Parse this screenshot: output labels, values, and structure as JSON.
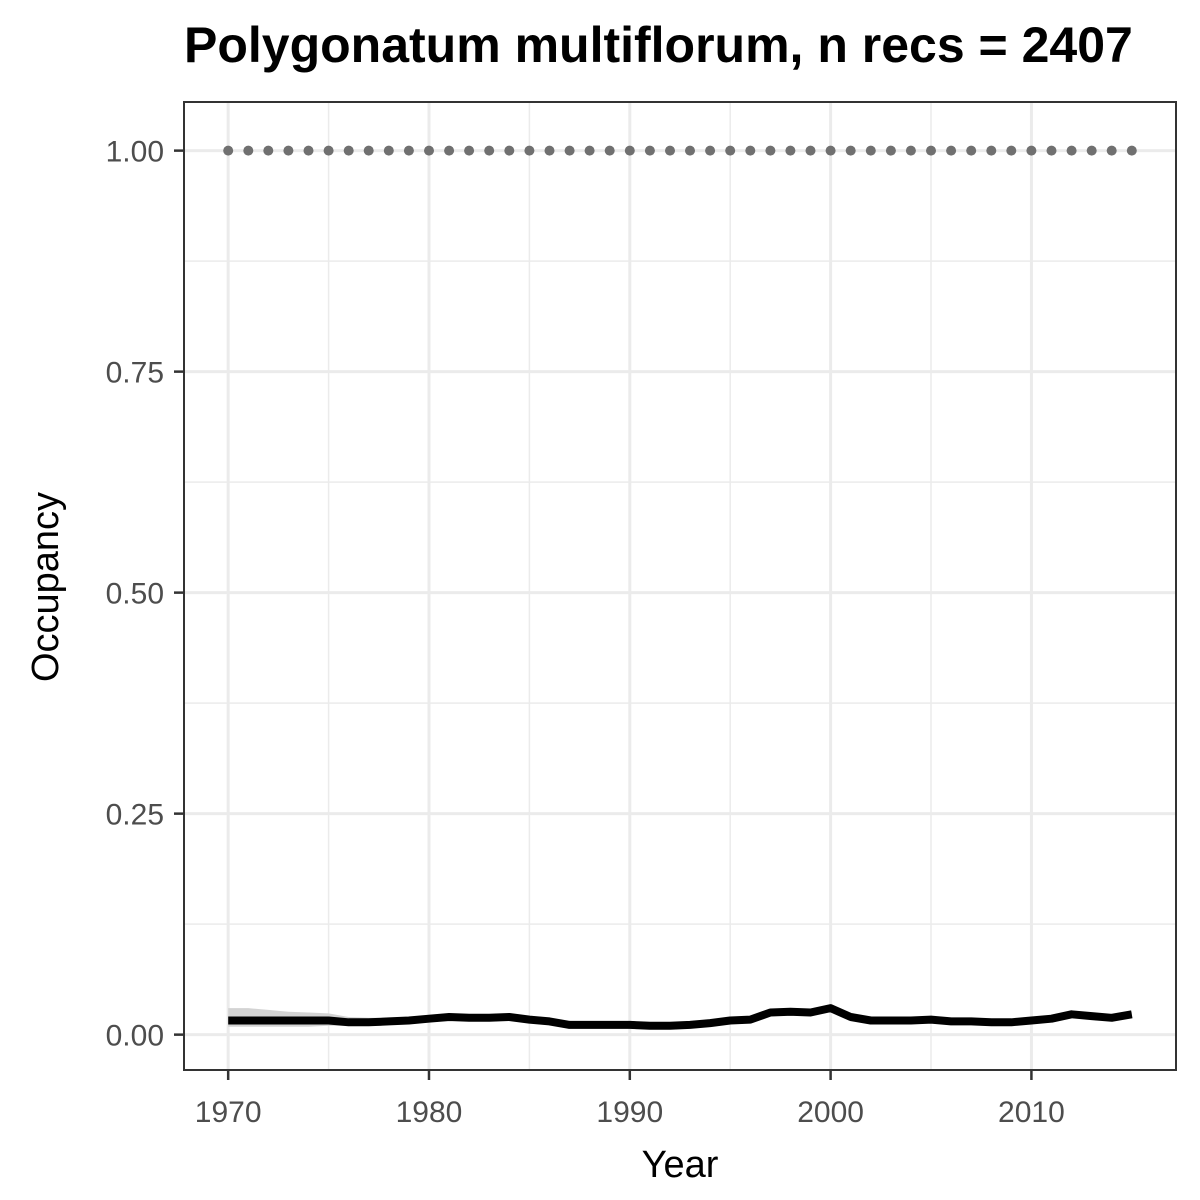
{
  "chart_data": {
    "type": "line",
    "title": "Polygonatum multiflorum, n recs = 2407",
    "xlabel": "Year",
    "ylabel": "Occupancy",
    "xlim": [
      1967.8,
      2017.2
    ],
    "ylim": [
      -0.04,
      1.055
    ],
    "x_ticks": [
      1970,
      1980,
      1990,
      2000,
      2010
    ],
    "y_ticks": [
      0,
      0.25,
      0.5,
      0.75,
      1
    ],
    "y_tick_labels": [
      "0.00",
      "0.25",
      "0.50",
      "0.75",
      "1.00"
    ],
    "grid": true,
    "colors": {
      "line": "#000000",
      "ribbon": "#d3d3d3",
      "dots": "#707070",
      "grid": "#ebebeb",
      "panel_border": "#333333"
    },
    "series": [
      {
        "x": [
          1970,
          1971,
          1972,
          1973,
          1974,
          1975,
          1976,
          1977,
          1978,
          1979,
          1980,
          1981,
          1982,
          1983,
          1984,
          1985,
          1986,
          1987,
          1988,
          1989,
          1990,
          1991,
          1992,
          1993,
          1994,
          1995,
          1996,
          1997,
          1998,
          1999,
          2000,
          2001,
          2002,
          2003,
          2004,
          2005,
          2006,
          2007,
          2008,
          2009,
          2010,
          2011,
          2012,
          2013,
          2014,
          2015
        ],
        "values": [
          0.016,
          0.016,
          0.016,
          0.016,
          0.016,
          0.016,
          0.014,
          0.014,
          0.015,
          0.016,
          0.018,
          0.02,
          0.019,
          0.019,
          0.02,
          0.017,
          0.015,
          0.011,
          0.011,
          0.011,
          0.011,
          0.01,
          0.01,
          0.011,
          0.013,
          0.016,
          0.017,
          0.025,
          0.026,
          0.025,
          0.03,
          0.02,
          0.016,
          0.016,
          0.016,
          0.017,
          0.015,
          0.015,
          0.014,
          0.014,
          0.016,
          0.018,
          0.023,
          0.021,
          0.019,
          0.023
        ],
        "lower": [
          0.009,
          0.009,
          0.009,
          0.009,
          0.009,
          0.01,
          0.01,
          0.011,
          0.012,
          0.013,
          0.015,
          0.017,
          0.016,
          0.016,
          0.017,
          0.014,
          0.012,
          0.009,
          0.009,
          0.009,
          0.009,
          0.008,
          0.008,
          0.009,
          0.011,
          0.014,
          0.015,
          0.022,
          0.023,
          0.022,
          0.026,
          0.017,
          0.014,
          0.014,
          0.014,
          0.015,
          0.013,
          0.013,
          0.012,
          0.012,
          0.014,
          0.016,
          0.021,
          0.019,
          0.017,
          0.02
        ],
        "upper": [
          0.03,
          0.03,
          0.028,
          0.026,
          0.025,
          0.024,
          0.02,
          0.019,
          0.019,
          0.02,
          0.022,
          0.023,
          0.022,
          0.022,
          0.023,
          0.02,
          0.018,
          0.014,
          0.013,
          0.013,
          0.013,
          0.012,
          0.012,
          0.013,
          0.015,
          0.018,
          0.02,
          0.028,
          0.029,
          0.028,
          0.034,
          0.023,
          0.019,
          0.018,
          0.018,
          0.019,
          0.017,
          0.017,
          0.016,
          0.016,
          0.018,
          0.02,
          0.025,
          0.023,
          0.021,
          0.026
        ]
      },
      {
        "x": [
          1970,
          1971,
          1972,
          1973,
          1974,
          1975,
          1976,
          1977,
          1978,
          1979,
          1980,
          1981,
          1982,
          1983,
          1984,
          1985,
          1986,
          1987,
          1988,
          1989,
          1990,
          1991,
          1992,
          1993,
          1994,
          1995,
          1996,
          1997,
          1998,
          1999,
          2000,
          2001,
          2002,
          2003,
          2004,
          2005,
          2006,
          2007,
          2008,
          2009,
          2010,
          2011,
          2012,
          2013,
          2014,
          2015
        ],
        "values": [
          1,
          1,
          1,
          1,
          1,
          1,
          1,
          1,
          1,
          1,
          1,
          1,
          1,
          1,
          1,
          1,
          1,
          1,
          1,
          1,
          1,
          1,
          1,
          1,
          1,
          1,
          1,
          1,
          1,
          1,
          1,
          1,
          1,
          1,
          1,
          1,
          1,
          1,
          1,
          1,
          1,
          1,
          1,
          1,
          1,
          1
        ]
      }
    ]
  }
}
